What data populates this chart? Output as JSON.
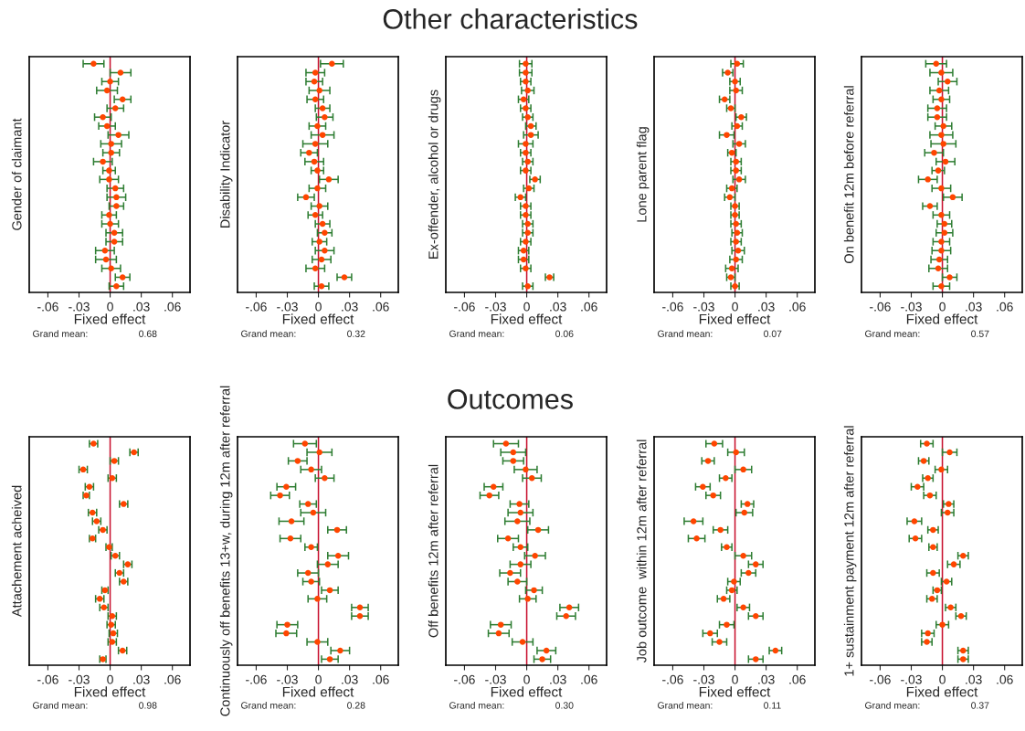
{
  "chart_data": [
    {
      "type": "scatter",
      "orientation": "horizontal",
      "xlabel": "Fixed effect",
      "ylabel": "Gender of claimant",
      "annotations": [
        "Grand mean:",
        "0.68"
      ],
      "marker": "circle",
      "tick_labels": "x",
      "grid": false,
      "categories": [
        null,
        null,
        null,
        null,
        null,
        null,
        null,
        null,
        null,
        null,
        null,
        null,
        null,
        null,
        null,
        null,
        null,
        null,
        null,
        null,
        null,
        null,
        null,
        null,
        null,
        null
      ],
      "series": [
        {
          "color": "#ff4500",
          "values": [
            -0.016,
            0.01,
            0.0,
            -0.003,
            0.012,
            0.005,
            -0.007,
            -0.003,
            0.008,
            0.001,
            0.001,
            -0.007,
            -0.001,
            -0.001,
            0.005,
            0.006,
            0.006,
            -0.001,
            0.0,
            0.004,
            0.004,
            -0.005,
            -0.004,
            0.001,
            0.012,
            0.006
          ],
          "errors": [
            0.01,
            0.01,
            0.008,
            0.01,
            0.008,
            0.008,
            0.008,
            0.008,
            0.01,
            0.01,
            0.008,
            0.009,
            0.006,
            0.009,
            0.008,
            0.009,
            0.007,
            0.007,
            0.008,
            0.008,
            0.008,
            0.009,
            0.01,
            0.009,
            0.007,
            0.007
          ]
        }
      ],
      "ref_lines": [
        {
          "axis": "x",
          "value": 0,
          "color": "#c8102e"
        }
      ],
      "xlim": [
        -0.078,
        0.077
      ],
      "xticks": [
        {
          "value": -0.06,
          "label": "-.06"
        },
        {
          "value": -0.03,
          "label": "-.03"
        },
        0,
        {
          "value": 0.03,
          "label": ".03"
        },
        {
          "value": 0.06,
          "label": ".06"
        }
      ]
    },
    {
      "type": "scatter",
      "orientation": "horizontal",
      "xlabel": "Fixed effect",
      "ylabel": "Disability Indicator",
      "annotations": [
        "Grand mean:",
        "0.32"
      ],
      "marker": "circle",
      "tick_labels": "x",
      "grid": false,
      "categories": [
        null,
        null,
        null,
        null,
        null,
        null,
        null,
        null,
        null,
        null,
        null,
        null,
        null,
        null,
        null,
        null,
        null,
        null,
        null,
        null,
        null,
        null,
        null,
        null,
        null,
        null
      ],
      "series": [
        {
          "color": "#ff4500",
          "values": [
            0.013,
            -0.003,
            -0.004,
            0.001,
            -0.003,
            0.004,
            0.006,
            -0.001,
            0.004,
            -0.003,
            -0.009,
            -0.004,
            -0.001,
            0.01,
            -0.001,
            -0.012,
            0.001,
            -0.003,
            0.004,
            0.006,
            0.001,
            0.006,
            0.003,
            -0.003,
            0.025,
            0.003
          ],
          "errors": [
            0.011,
            0.009,
            0.008,
            0.01,
            0.008,
            0.007,
            0.008,
            0.008,
            0.011,
            0.012,
            0.008,
            0.009,
            0.006,
            0.009,
            0.008,
            0.008,
            0.008,
            0.007,
            0.007,
            0.007,
            0.007,
            0.009,
            0.009,
            0.009,
            0.007,
            0.007
          ]
        }
      ],
      "ref_lines": [
        {
          "axis": "x",
          "value": 0,
          "color": "#c8102e"
        }
      ],
      "xlim": [
        -0.078,
        0.077
      ],
      "xticks": [
        {
          "value": -0.06,
          "label": "-.06"
        },
        {
          "value": -0.03,
          "label": "-.03"
        },
        0,
        {
          "value": 0.03,
          "label": ".03"
        },
        {
          "value": 0.06,
          "label": ".06"
        }
      ]
    },
    {
      "type": "scatter",
      "orientation": "horizontal",
      "title": "Other characteristics",
      "xlabel": "Fixed effect",
      "ylabel": "Ex-offender, alcohol or drugs",
      "annotations": [
        "Grand mean:",
        "0.06"
      ],
      "marker": "circle",
      "tick_labels": "x",
      "grid": false,
      "categories": [
        null,
        null,
        null,
        null,
        null,
        null,
        null,
        null,
        null,
        null,
        null,
        null,
        null,
        null,
        null,
        null,
        null,
        null,
        null,
        null,
        null,
        null,
        null,
        null,
        null,
        null
      ],
      "series": [
        {
          "color": "#ff4500",
          "values": [
            -0.001,
            -0.001,
            -0.001,
            0.001,
            -0.003,
            -0.001,
            0.001,
            0.004,
            0.004,
            -0.001,
            -0.001,
            0.001,
            -0.001,
            0.008,
            0.002,
            -0.006,
            -0.001,
            -0.001,
            0.001,
            0.001,
            -0.001,
            -0.003,
            -0.003,
            -0.001,
            0.022,
            0.001
          ],
          "errors": [
            0.006,
            0.006,
            0.005,
            0.006,
            0.005,
            0.005,
            0.005,
            0.005,
            0.007,
            0.007,
            0.005,
            0.005,
            0.005,
            0.005,
            0.005,
            0.005,
            0.005,
            0.005,
            0.005,
            0.005,
            0.005,
            0.005,
            0.005,
            0.005,
            0.004,
            0.005
          ]
        }
      ],
      "ref_lines": [
        {
          "axis": "x",
          "value": 0,
          "color": "#c8102e"
        }
      ],
      "xlim": [
        -0.078,
        0.077
      ],
      "xticks": [
        {
          "value": -0.06,
          "label": "-.06"
        },
        {
          "value": -0.03,
          "label": "-.03"
        },
        0,
        {
          "value": 0.03,
          "label": ".03"
        },
        {
          "value": 0.06,
          "label": ".06"
        }
      ]
    },
    {
      "type": "scatter",
      "orientation": "horizontal",
      "xlabel": "Fixed effect",
      "ylabel": "Lone parent flag",
      "annotations": [
        "Grand mean:",
        "0.07"
      ],
      "marker": "circle",
      "tick_labels": "x",
      "grid": false,
      "categories": [
        null,
        null,
        null,
        null,
        null,
        null,
        null,
        null,
        null,
        null,
        null,
        null,
        null,
        null,
        null,
        null,
        null,
        null,
        null,
        null,
        null,
        null,
        null,
        null,
        null,
        null
      ],
      "series": [
        {
          "color": "#ff4500",
          "values": [
            0.002,
            -0.007,
            0.0,
            0.001,
            -0.01,
            -0.004,
            0.006,
            0.002,
            -0.008,
            0.004,
            -0.003,
            0.001,
            0.001,
            0.004,
            -0.003,
            -0.005,
            0.0,
            0.0,
            0.001,
            0.002,
            0.001,
            0.003,
            0.001,
            -0.003,
            -0.004,
            0.0
          ],
          "errors": [
            0.006,
            0.005,
            0.005,
            0.006,
            0.005,
            0.004,
            0.005,
            0.005,
            0.007,
            0.006,
            0.004,
            0.005,
            0.005,
            0.006,
            0.005,
            0.005,
            0.004,
            0.004,
            0.005,
            0.005,
            0.005,
            0.006,
            0.006,
            0.006,
            0.004,
            0.004
          ]
        }
      ],
      "ref_lines": [
        {
          "axis": "x",
          "value": 0,
          "color": "#c8102e"
        }
      ],
      "xlim": [
        -0.078,
        0.077
      ],
      "xticks": [
        {
          "value": -0.06,
          "label": "-.06"
        },
        {
          "value": -0.03,
          "label": "-.03"
        },
        0,
        {
          "value": 0.03,
          "label": ".03"
        },
        {
          "value": 0.06,
          "label": ".06"
        }
      ]
    },
    {
      "type": "scatter",
      "orientation": "horizontal",
      "xlabel": "Fixed effect",
      "ylabel": "On benefit 12m before referral",
      "annotations": [
        "Grand mean:",
        "0.57"
      ],
      "marker": "circle",
      "tick_labels": "x",
      "grid": false,
      "categories": [
        null,
        null,
        null,
        null,
        null,
        null,
        null,
        null,
        null,
        null,
        null,
        null,
        null,
        null,
        null,
        null,
        null,
        null,
        null,
        null,
        null,
        null,
        null,
        null,
        null,
        null
      ],
      "series": [
        {
          "color": "#ff4500",
          "values": [
            -0.006,
            -0.001,
            0.005,
            -0.003,
            -0.001,
            -0.005,
            -0.005,
            0.001,
            -0.001,
            0.001,
            -0.008,
            0.003,
            -0.004,
            -0.014,
            -0.001,
            0.01,
            -0.012,
            -0.001,
            0.002,
            0.002,
            -0.001,
            -0.001,
            -0.003,
            -0.004,
            0.007,
            -0.001
          ],
          "errors": [
            0.01,
            0.011,
            0.009,
            0.009,
            0.008,
            0.009,
            0.009,
            0.008,
            0.011,
            0.012,
            0.009,
            0.009,
            0.006,
            0.009,
            0.009,
            0.009,
            0.007,
            0.008,
            0.007,
            0.008,
            0.008,
            0.009,
            0.008,
            0.009,
            0.007,
            0.008
          ]
        }
      ],
      "ref_lines": [
        {
          "axis": "x",
          "value": 0,
          "color": "#c8102e"
        }
      ],
      "xlim": [
        -0.078,
        0.077
      ],
      "xticks": [
        {
          "value": -0.06,
          "label": "-.06"
        },
        {
          "value": -0.03,
          "label": "-.03"
        },
        0,
        {
          "value": 0.03,
          "label": ".03"
        },
        {
          "value": 0.06,
          "label": ".06"
        }
      ]
    },
    {
      "type": "scatter",
      "orientation": "horizontal",
      "xlabel": "Fixed effect",
      "ylabel": "Attachement acheived",
      "annotations": [
        "Grand mean:",
        "0.98"
      ],
      "marker": "circle",
      "tick_labels": "x",
      "grid": false,
      "categories": [
        null,
        null,
        null,
        null,
        null,
        null,
        null,
        null,
        null,
        null,
        null,
        null,
        null,
        null,
        null,
        null,
        null,
        null,
        null,
        null,
        null,
        null,
        null,
        null,
        null,
        null
      ],
      "series": [
        {
          "color": "#ff4500",
          "values": [
            -0.016,
            0.023,
            0.004,
            -0.026,
            0.002,
            -0.02,
            -0.023,
            0.013,
            -0.017,
            -0.013,
            -0.007,
            -0.017,
            -0.001,
            0.005,
            0.017,
            0.009,
            0.013,
            -0.005,
            -0.01,
            -0.006,
            0.002,
            0.001,
            0.003,
            0.002,
            0.012,
            -0.007
          ],
          "errors": [
            0.004,
            0.004,
            0.004,
            0.004,
            0.004,
            0.004,
            0.003,
            0.004,
            0.004,
            0.004,
            0.004,
            0.003,
            0.003,
            0.004,
            0.004,
            0.004,
            0.004,
            0.003,
            0.004,
            0.004,
            0.004,
            0.004,
            0.004,
            0.004,
            0.004,
            0.003
          ]
        }
      ],
      "ref_lines": [
        {
          "axis": "x",
          "value": 0,
          "color": "#c8102e"
        }
      ],
      "xlim": [
        -0.078,
        0.077
      ],
      "xticks": [
        {
          "value": -0.06,
          "label": "-.06"
        },
        {
          "value": -0.03,
          "label": "-.03"
        },
        0,
        {
          "value": 0.03,
          "label": ".03"
        },
        {
          "value": 0.06,
          "label": ".06"
        }
      ]
    },
    {
      "type": "scatter",
      "orientation": "horizontal",
      "xlabel": "Fixed effect",
      "ylabel": "Continuously off benefits 13+w, during 12m after referral",
      "annotations": [
        "Grand mean:",
        "0.28"
      ],
      "marker": "circle",
      "tick_labels": "x",
      "grid": false,
      "categories": [
        null,
        null,
        null,
        null,
        null,
        null,
        null,
        null,
        null,
        null,
        null,
        null,
        null,
        null,
        null,
        null,
        null,
        null,
        null,
        null,
        null,
        null,
        null,
        null,
        null,
        null
      ],
      "series": [
        {
          "color": "#ff4500",
          "values": [
            -0.013,
            0.001,
            -0.02,
            -0.007,
            0.006,
            -0.031,
            -0.037,
            -0.01,
            -0.005,
            -0.026,
            0.018,
            -0.027,
            -0.007,
            0.019,
            0.009,
            -0.01,
            -0.007,
            0.011,
            -0.001,
            0.04,
            0.04,
            -0.03,
            -0.031,
            -0.001,
            0.021,
            0.011
          ],
          "errors": [
            0.011,
            0.012,
            0.009,
            0.01,
            0.009,
            0.009,
            0.009,
            0.008,
            0.012,
            0.012,
            0.009,
            0.01,
            0.006,
            0.01,
            0.01,
            0.01,
            0.008,
            0.008,
            0.009,
            0.008,
            0.008,
            0.01,
            0.01,
            0.01,
            0.009,
            0.008
          ]
        }
      ],
      "ref_lines": [
        {
          "axis": "x",
          "value": 0,
          "color": "#c8102e"
        }
      ],
      "xlim": [
        -0.078,
        0.077
      ],
      "xticks": [
        {
          "value": -0.06,
          "label": "-.06"
        },
        {
          "value": -0.03,
          "label": "-.03"
        },
        0,
        {
          "value": 0.03,
          "label": ".03"
        },
        {
          "value": 0.06,
          "label": ".06"
        }
      ]
    },
    {
      "type": "scatter",
      "orientation": "horizontal",
      "title": "Outcomes",
      "xlabel": "Fixed effect",
      "ylabel": "Off benefits 12m after referral",
      "annotations": [
        "Grand mean:",
        "0.30"
      ],
      "marker": "circle",
      "tick_labels": "x",
      "grid": false,
      "categories": [
        null,
        null,
        null,
        null,
        null,
        null,
        null,
        null,
        null,
        null,
        null,
        null,
        null,
        null,
        null,
        null,
        null,
        null,
        null,
        null,
        null,
        null,
        null,
        null,
        null,
        null
      ],
      "series": [
        {
          "color": "#ff4500",
          "values": [
            -0.02,
            -0.013,
            -0.013,
            -0.001,
            0.005,
            -0.032,
            -0.036,
            -0.007,
            -0.006,
            -0.009,
            0.011,
            -0.018,
            -0.006,
            0.008,
            -0.006,
            -0.016,
            -0.009,
            0.007,
            0.001,
            0.041,
            0.038,
            -0.025,
            -0.027,
            -0.004,
            0.019,
            0.015
          ],
          "errors": [
            0.012,
            0.012,
            0.01,
            0.011,
            0.009,
            0.009,
            0.009,
            0.009,
            0.012,
            0.012,
            0.01,
            0.01,
            0.007,
            0.01,
            0.01,
            0.01,
            0.009,
            0.008,
            0.008,
            0.009,
            0.009,
            0.01,
            0.01,
            0.01,
            0.009,
            0.008
          ]
        }
      ],
      "ref_lines": [
        {
          "axis": "x",
          "value": 0,
          "color": "#c8102e"
        }
      ],
      "xlim": [
        -0.078,
        0.077
      ],
      "xticks": [
        {
          "value": -0.06,
          "label": "-.06"
        },
        {
          "value": -0.03,
          "label": "-.03"
        },
        0,
        {
          "value": 0.03,
          "label": ".03"
        },
        {
          "value": 0.06,
          "label": ".06"
        }
      ]
    },
    {
      "type": "scatter",
      "orientation": "horizontal",
      "xlabel": "Fixed effect",
      "ylabel": "Job outcome  within 12m after referral",
      "annotations": [
        "Grand mean:",
        "0.11"
      ],
      "marker": "circle",
      "tick_labels": "x",
      "grid": false,
      "categories": [
        null,
        null,
        null,
        null,
        null,
        null,
        null,
        null,
        null,
        null,
        null,
        null,
        null,
        null,
        null,
        null,
        null,
        null,
        null,
        null,
        null,
        null,
        null,
        null,
        null,
        null
      ],
      "series": [
        {
          "color": "#ff4500",
          "values": [
            -0.02,
            0.001,
            -0.026,
            0.008,
            -0.009,
            -0.031,
            -0.021,
            0.012,
            0.009,
            -0.04,
            -0.014,
            -0.037,
            -0.008,
            0.008,
            0.02,
            0.013,
            -0.001,
            -0.003,
            -0.011,
            0.008,
            0.02,
            -0.008,
            -0.024,
            -0.015,
            0.039,
            0.02
          ],
          "errors": [
            0.008,
            0.008,
            0.006,
            0.008,
            0.006,
            0.007,
            0.007,
            0.006,
            0.008,
            0.009,
            0.007,
            0.008,
            0.005,
            0.008,
            0.007,
            0.007,
            0.006,
            0.005,
            0.006,
            0.006,
            0.007,
            0.007,
            0.007,
            0.007,
            0.006,
            0.007
          ]
        }
      ],
      "ref_lines": [
        {
          "axis": "x",
          "value": 0,
          "color": "#c8102e"
        }
      ],
      "xlim": [
        -0.078,
        0.077
      ],
      "xticks": [
        {
          "value": -0.06,
          "label": "-.06"
        },
        {
          "value": -0.03,
          "label": "-.03"
        },
        0,
        {
          "value": 0.03,
          "label": ".03"
        },
        {
          "value": 0.06,
          "label": ".06"
        }
      ]
    },
    {
      "type": "scatter",
      "orientation": "horizontal",
      "xlabel": "Fixed effect",
      "ylabel": "1+ sustainment payment 12m after referral",
      "annotations": [
        "Grand mean:",
        "0.37"
      ],
      "marker": "circle",
      "tick_labels": "x",
      "grid": false,
      "categories": [
        null,
        null,
        null,
        null,
        null,
        null,
        null,
        null,
        null,
        null,
        null,
        null,
        null,
        null,
        null,
        null,
        null,
        null,
        null,
        null,
        null,
        null,
        null,
        null,
        null,
        null
      ],
      "series": [
        {
          "color": "#ff4500",
          "values": [
            -0.015,
            0.007,
            -0.018,
            -0.001,
            -0.014,
            -0.024,
            -0.012,
            0.006,
            0.005,
            -0.027,
            -0.009,
            -0.026,
            -0.009,
            0.02,
            0.011,
            -0.009,
            0.004,
            -0.005,
            -0.01,
            0.008,
            0.018,
            0.0,
            -0.014,
            -0.015,
            0.02,
            0.02
          ],
          "errors": [
            0.006,
            0.007,
            0.005,
            0.006,
            0.005,
            0.006,
            0.006,
            0.005,
            0.006,
            0.007,
            0.005,
            0.006,
            0.004,
            0.005,
            0.006,
            0.006,
            0.005,
            0.004,
            0.005,
            0.005,
            0.005,
            0.006,
            0.006,
            0.005,
            0.005,
            0.005
          ]
        }
      ],
      "ref_lines": [
        {
          "axis": "x",
          "value": 0,
          "color": "#c8102e"
        }
      ],
      "xlim": [
        -0.078,
        0.077
      ],
      "xticks": [
        {
          "value": -0.06,
          "label": "-.06"
        },
        {
          "value": -0.03,
          "label": "-.03"
        },
        0,
        {
          "value": 0.03,
          "label": ".03"
        },
        {
          "value": 0.06,
          "label": ".06"
        }
      ]
    }
  ]
}
